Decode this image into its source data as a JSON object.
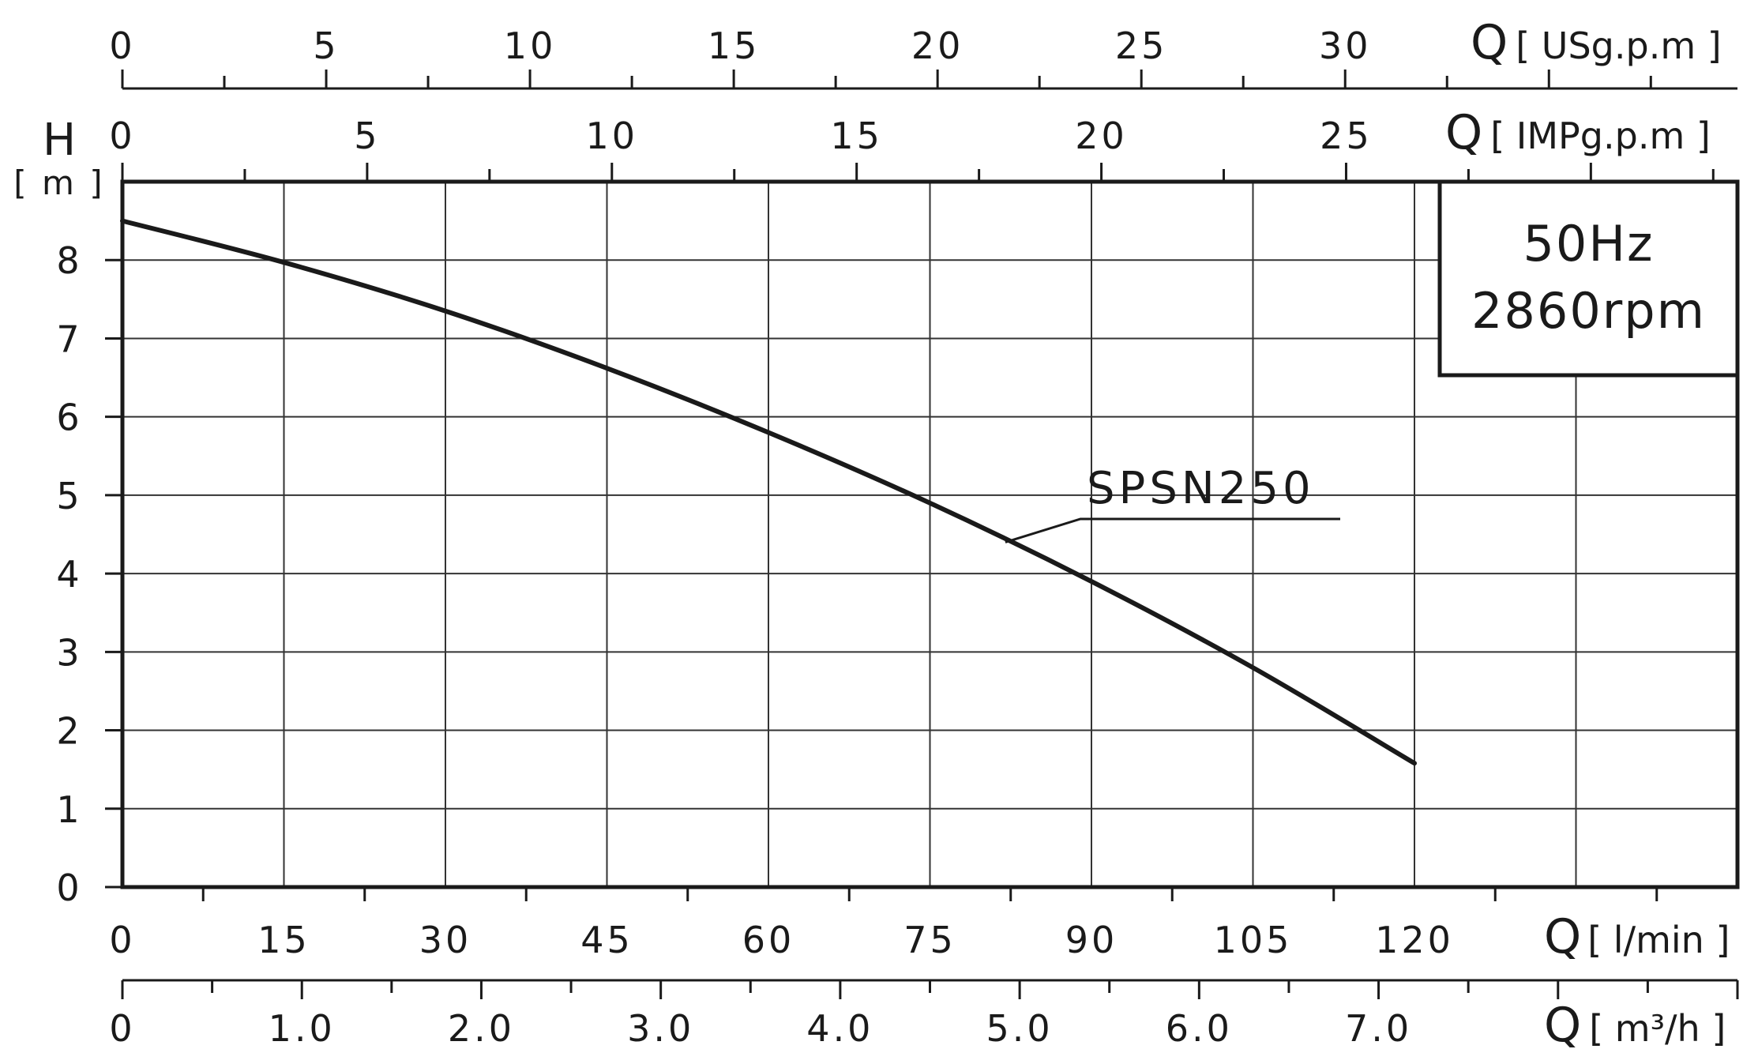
{
  "chart_data": {
    "type": "line",
    "title": "",
    "info_box": [
      "50Hz",
      "2860rpm"
    ],
    "y_axis": {
      "label": "H",
      "unit": "[ m ]",
      "range": [
        0,
        9
      ],
      "ticks": [
        0,
        1,
        2,
        3,
        4,
        5,
        6,
        7,
        8
      ]
    },
    "x_axis": {
      "label": "Q",
      "unit": "[ l/min ]",
      "range": [
        0,
        150
      ],
      "ticks": [
        0,
        15,
        30,
        45,
        60,
        75,
        90,
        105,
        120
      ],
      "tick_labels": [
        "0",
        "15",
        "30",
        "45",
        "60",
        "75",
        "90",
        "105",
        "120"
      ],
      "grid_lines": [
        15,
        30,
        45,
        60,
        75,
        90,
        105,
        120,
        135
      ]
    },
    "secondary_axes": [
      {
        "id": "usgpm",
        "position": "top-outer",
        "label": "Q",
        "unit": "[ USg.p.m ]",
        "scale_per_lmin": 0.264172,
        "major": [
          0,
          5,
          10,
          15,
          20,
          25,
          30
        ],
        "labels": [
          "0",
          "5",
          "10",
          "15",
          "20",
          "25",
          "30"
        ],
        "tick_step": 2.5
      },
      {
        "id": "impgpm",
        "position": "top-inner",
        "label": "Q",
        "unit": "[ IMPg.p.m ]",
        "scale_per_lmin": 0.219969,
        "major": [
          0,
          5,
          10,
          15,
          20,
          25
        ],
        "labels": [
          "0",
          "5",
          "10",
          "15",
          "20",
          "25"
        ],
        "tick_step": 2.5
      },
      {
        "id": "m3h",
        "position": "bottom-outer",
        "label": "Q",
        "unit": "[ m³/h ]",
        "scale_per_lmin": 0.06,
        "major": [
          0,
          1,
          2,
          3,
          4,
          5,
          6,
          7
        ],
        "labels": [
          "0",
          "1.0",
          "2.0",
          "3.0",
          "4.0",
          "5.0",
          "6.0",
          "7.0"
        ],
        "tick_step": 0.5
      }
    ],
    "series": [
      {
        "name": "SPSN250",
        "label_anchor": {
          "x": 82,
          "y": 4.4
        },
        "points": [
          {
            "x": 0,
            "y": 8.5
          },
          {
            "x": 15,
            "y": 7.97
          },
          {
            "x": 30,
            "y": 7.35
          },
          {
            "x": 45,
            "y": 6.62
          },
          {
            "x": 60,
            "y": 5.8
          },
          {
            "x": 75,
            "y": 4.9
          },
          {
            "x": 90,
            "y": 3.9
          },
          {
            "x": 105,
            "y": 2.8
          },
          {
            "x": 120,
            "y": 1.58
          }
        ]
      }
    ]
  }
}
